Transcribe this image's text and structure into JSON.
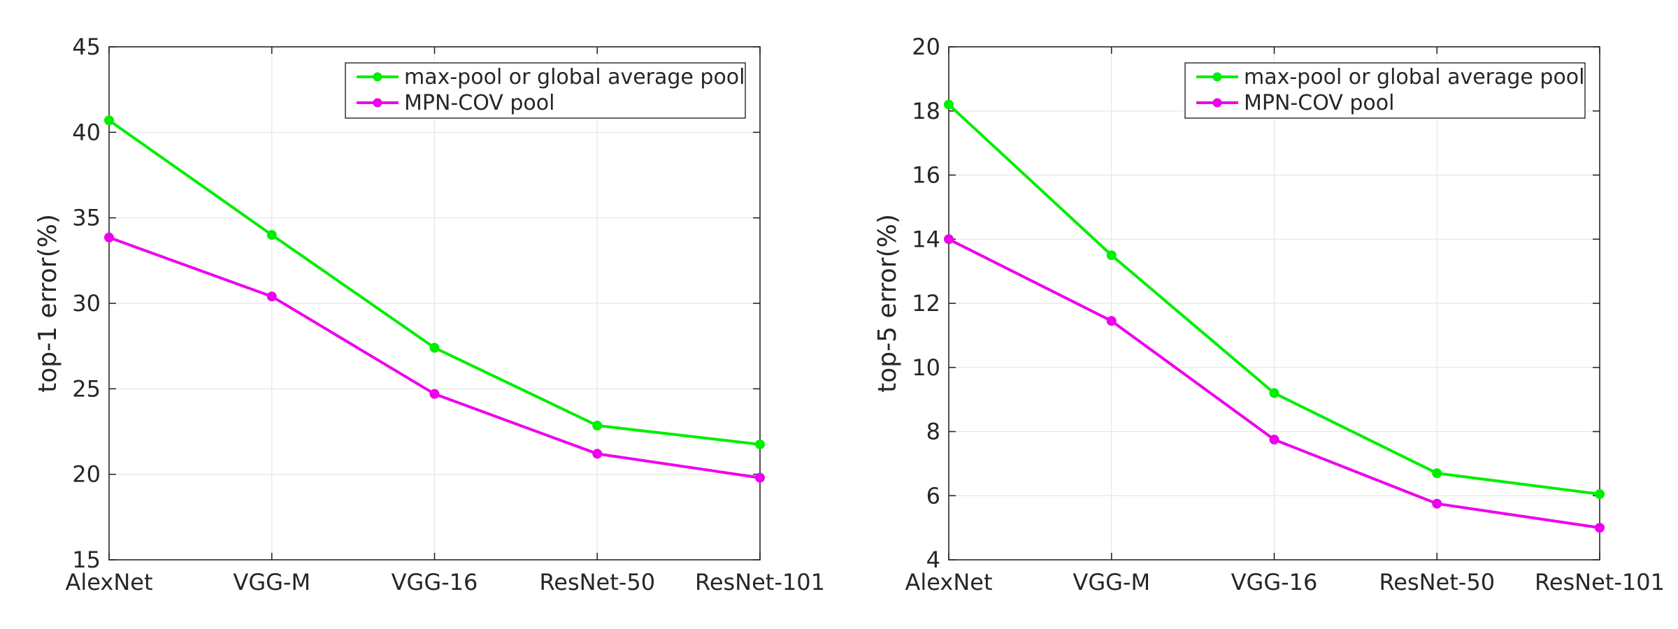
{
  "chart_data": [
    {
      "type": "line",
      "title": "",
      "xlabel": "",
      "ylabel": "top-1 error(%)",
      "ylim": [
        15,
        45
      ],
      "yticks": [
        15,
        20,
        25,
        30,
        35,
        40,
        45
      ],
      "grid": true,
      "legend_position": "top-right",
      "categories": [
        "AlexNet",
        "VGG-M",
        "VGG-16",
        "ResNet-50",
        "ResNet-101"
      ],
      "series": [
        {
          "name": "max-pool or global average pool",
          "color": "#00ee00",
          "values": [
            40.7,
            34.0,
            27.4,
            22.85,
            21.75
          ]
        },
        {
          "name": "MPN-COV pool",
          "color": "#ee00ee",
          "values": [
            33.85,
            30.4,
            24.7,
            21.2,
            19.8
          ]
        }
      ]
    },
    {
      "type": "line",
      "title": "",
      "xlabel": "",
      "ylabel": "top-5 error(%)",
      "ylim": [
        4,
        20
      ],
      "yticks": [
        4,
        6,
        8,
        10,
        12,
        14,
        16,
        18,
        20
      ],
      "grid": true,
      "legend_position": "top-right",
      "categories": [
        "AlexNet",
        "VGG-M",
        "VGG-16",
        "ResNet-50",
        "ResNet-101"
      ],
      "series": [
        {
          "name": "max-pool or global average pool",
          "color": "#00ee00",
          "values": [
            18.2,
            13.5,
            9.2,
            6.7,
            6.05
          ]
        },
        {
          "name": "MPN-COV pool",
          "color": "#ee00ee",
          "values": [
            14.0,
            11.45,
            7.75,
            5.75,
            5.0
          ]
        }
      ]
    }
  ]
}
